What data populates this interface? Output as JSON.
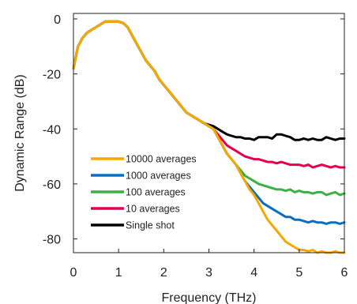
{
  "chart_data": {
    "type": "line",
    "title": "",
    "xlabel": "Frequency (THz)",
    "ylabel": "Dynamic Range (dB)",
    "xlim": [
      0,
      6
    ],
    "ylim": [
      -85,
      2
    ],
    "xticks": [
      0,
      1,
      2,
      3,
      4,
      5,
      6
    ],
    "yticks": [
      0,
      -20,
      -40,
      -60,
      -80
    ],
    "grid": false,
    "legend_position": "lower-left",
    "x": [
      0,
      0.1,
      0.2,
      0.3,
      0.4,
      0.5,
      0.6,
      0.7,
      0.8,
      0.9,
      1.0,
      1.1,
      1.2,
      1.3,
      1.4,
      1.5,
      1.6,
      1.7,
      1.8,
      1.9,
      2.0,
      2.1,
      2.2,
      2.3,
      2.4,
      2.5,
      2.6,
      2.7,
      2.8,
      2.9,
      3.0,
      3.1,
      3.2,
      3.3,
      3.4,
      3.5,
      3.6,
      3.7,
      3.8,
      3.9,
      4.0,
      4.1,
      4.2,
      4.3,
      4.4,
      4.5,
      4.6,
      4.7,
      4.8,
      4.9,
      5.0,
      5.1,
      5.2,
      5.3,
      5.4,
      5.5,
      5.6,
      5.7,
      5.8,
      5.9,
      6.0
    ],
    "series": [
      {
        "name": "Single shot",
        "color": "#000000",
        "values": [
          -18,
          -10,
          -7,
          -5,
          -4,
          -3,
          -2,
          -1,
          -1,
          -1,
          -1,
          -1.5,
          -3,
          -6,
          -9,
          -12,
          -15,
          -17,
          -19,
          -22,
          -24,
          -26,
          -28,
          -30,
          -32,
          -34,
          -35,
          -36,
          -37,
          -38,
          -38.5,
          -39,
          -40,
          -41,
          -42,
          -42.5,
          -43,
          -43,
          -43.5,
          -43.5,
          -44,
          -43,
          -43,
          -43,
          -43.5,
          -42,
          -42,
          -42.5,
          -43,
          -44,
          -44,
          -43.5,
          -44,
          -43.5,
          -44,
          -44,
          -43,
          -43.5,
          -44,
          -43.5,
          -43.5
        ]
      },
      {
        "name": "10 averages",
        "color": "#e6004c",
        "values": [
          -18,
          -10,
          -7,
          -5,
          -4,
          -3,
          -2,
          -1,
          -1,
          -1,
          -1,
          -1.5,
          -3,
          -6,
          -9,
          -12,
          -15,
          -17,
          -19,
          -22,
          -24,
          -26,
          -28,
          -30,
          -32,
          -34,
          -35,
          -36,
          -37,
          -38,
          -39,
          -40,
          -42,
          -44,
          -46,
          -47,
          -48,
          -49,
          -50,
          -50.5,
          -51,
          -51,
          -51.5,
          -52,
          -52,
          -52.5,
          -52,
          -52.5,
          -53,
          -53,
          -53,
          -53.5,
          -53,
          -54,
          -53.5,
          -53,
          -53.5,
          -54,
          -53.5,
          -54,
          -54
        ]
      },
      {
        "name": "100 averages",
        "color": "#3cb043",
        "values": [
          -18,
          -10,
          -7,
          -5,
          -4,
          -3,
          -2,
          -1,
          -1,
          -1,
          -1,
          -1.5,
          -3,
          -6,
          -9,
          -12,
          -15,
          -17,
          -19,
          -22,
          -24,
          -26,
          -28,
          -30,
          -32,
          -34,
          -35,
          -36,
          -37,
          -38,
          -39,
          -40,
          -43,
          -46,
          -49,
          -51,
          -53,
          -55,
          -57,
          -58,
          -59,
          -60,
          -60.5,
          -61,
          -61.5,
          -62,
          -62,
          -62.5,
          -62,
          -63,
          -62.5,
          -63,
          -63,
          -63.5,
          -63,
          -63,
          -64,
          -63.5,
          -63,
          -64,
          -63.5
        ]
      },
      {
        "name": "1000 averages",
        "color": "#0a6fbf",
        "values": [
          -18,
          -10,
          -7,
          -5,
          -4,
          -3,
          -2,
          -1,
          -1,
          -1,
          -1,
          -1.5,
          -3,
          -6,
          -9,
          -12,
          -15,
          -17,
          -19,
          -22,
          -24,
          -26,
          -28,
          -30,
          -32,
          -34,
          -35,
          -36,
          -37,
          -38,
          -39,
          -40,
          -43,
          -46,
          -49,
          -51,
          -53,
          -56,
          -59,
          -61,
          -63,
          -65,
          -67,
          -68,
          -69,
          -70,
          -71,
          -72,
          -72,
          -73,
          -73,
          -73.5,
          -74,
          -73.5,
          -74,
          -74,
          -74.5,
          -74,
          -74,
          -74.5,
          -74
        ]
      },
      {
        "name": "10000 averages",
        "color": "#f5a800",
        "values": [
          -18,
          -10,
          -7,
          -5,
          -4,
          -3,
          -2,
          -1,
          -1,
          -1,
          -1,
          -1.5,
          -3,
          -6,
          -9,
          -12,
          -15,
          -17,
          -19,
          -22,
          -24,
          -26,
          -28,
          -30,
          -32,
          -34,
          -35,
          -36,
          -37,
          -38,
          -39,
          -40,
          -43,
          -46,
          -49,
          -51,
          -53,
          -56,
          -59,
          -62,
          -64,
          -67,
          -70,
          -73,
          -75,
          -77,
          -79,
          -81,
          -82,
          -83,
          -84,
          -84,
          -84.5,
          -84,
          -85,
          -84.5,
          -85,
          -85,
          -84.5,
          -85,
          -85
        ]
      }
    ],
    "legend": [
      {
        "label": "10000 averages",
        "color": "#f5a800"
      },
      {
        "label": "1000 averages",
        "color": "#0a6fbf"
      },
      {
        "label": "100 averages",
        "color": "#3cb043"
      },
      {
        "label": "10 averages",
        "color": "#e6004c"
      },
      {
        "label": "Single shot",
        "color": "#000000"
      }
    ]
  }
}
